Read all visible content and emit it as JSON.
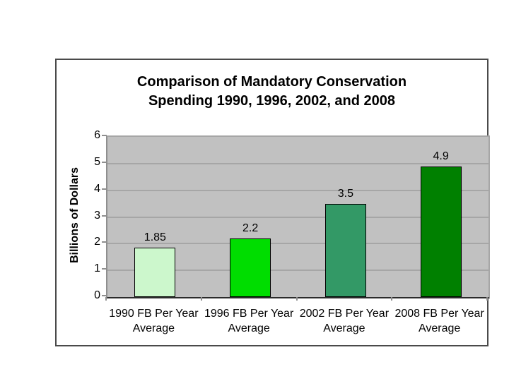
{
  "page": {
    "background": "#ffffff"
  },
  "chart_data": {
    "type": "bar",
    "title_lines": [
      "Comparison of Mandatory Conservation",
      "Spending 1990, 1996, 2002, and 2008"
    ],
    "ylabel": "Billions of Dollars",
    "xlabel": "",
    "categories": [
      "1990 FB Per Year Average",
      "1996 FB Per Year Average",
      "2002 FB Per Year Average",
      "2008 FB Per Year Average"
    ],
    "values": [
      1.85,
      2.2,
      3.5,
      4.9
    ],
    "value_labels": [
      "1.85",
      "2.2",
      "3.5",
      "4.9"
    ],
    "bar_colors": [
      "#ccf7cc",
      "#00dd00",
      "#339966",
      "#008000"
    ],
    "ylim": [
      0,
      6
    ],
    "ytick_step": 1,
    "ytick_labels": [
      "0",
      "1",
      "2",
      "3",
      "4",
      "5",
      "6"
    ],
    "grid": true,
    "legend": "none",
    "plot_background": "#c1c1c1",
    "gridline_color": "#a6a6a6",
    "bar_border_color": "#000000",
    "frame_border_color": "#4a4a4a",
    "text_color": "#000000"
  }
}
